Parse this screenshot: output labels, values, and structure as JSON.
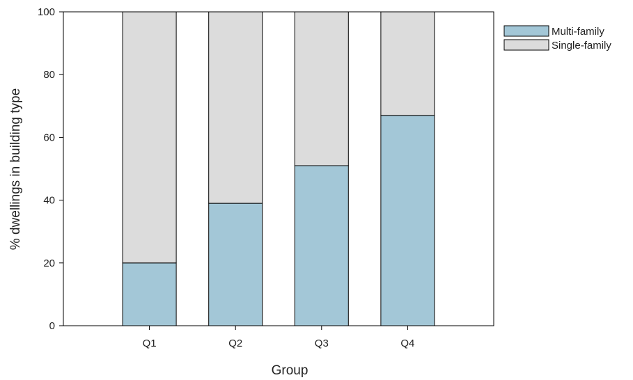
{
  "chart_data": {
    "type": "bar",
    "stacked": true,
    "title": "",
    "xlabel": "Group",
    "ylabel": "% dwellings in building type",
    "categories": [
      "Q1",
      "Q2",
      "Q3",
      "Q4"
    ],
    "series": [
      {
        "name": "Multi-family",
        "values": [
          20,
          39,
          51,
          67
        ],
        "color": "#a3c7d7"
      },
      {
        "name": "Single-family",
        "values": [
          80,
          61,
          49,
          33
        ],
        "color": "#dcdcdc"
      }
    ],
    "ylim": [
      0,
      100
    ],
    "yticks": [
      0,
      20,
      40,
      60,
      80,
      100
    ],
    "grid": false,
    "legend_position": "top-right"
  }
}
